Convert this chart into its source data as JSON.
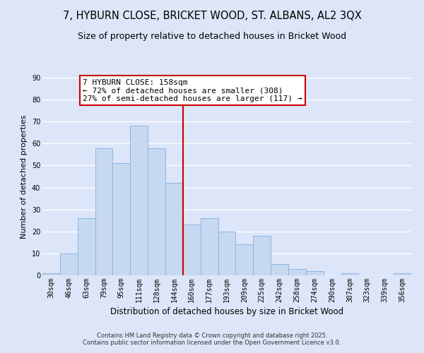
{
  "title": "7, HYBURN CLOSE, BRICKET WOOD, ST. ALBANS, AL2 3QX",
  "subtitle": "Size of property relative to detached houses in Bricket Wood",
  "xlabel": "Distribution of detached houses by size in Bricket Wood",
  "ylabel": "Number of detached properties",
  "bar_labels": [
    "30sqm",
    "46sqm",
    "63sqm",
    "79sqm",
    "95sqm",
    "111sqm",
    "128sqm",
    "144sqm",
    "160sqm",
    "177sqm",
    "193sqm",
    "209sqm",
    "225sqm",
    "242sqm",
    "258sqm",
    "274sqm",
    "290sqm",
    "307sqm",
    "323sqm",
    "339sqm",
    "356sqm"
  ],
  "bar_heights": [
    1,
    10,
    26,
    58,
    51,
    68,
    58,
    42,
    23,
    26,
    20,
    14,
    18,
    5,
    3,
    2,
    0,
    1,
    0,
    0,
    1
  ],
  "bar_color": "#c6d9f1",
  "bar_edge_color": "#8db4e2",
  "vline_color": "#cc0000",
  "annotation_box_text": "7 HYBURN CLOSE: 158sqm\n← 72% of detached houses are smaller (308)\n27% of semi-detached houses are larger (117) →",
  "annotation_box_facecolor": "#ffffff",
  "annotation_box_edgecolor": "#cc0000",
  "ylim": [
    0,
    90
  ],
  "yticks": [
    0,
    10,
    20,
    30,
    40,
    50,
    60,
    70,
    80,
    90
  ],
  "background_color": "#dce6f8",
  "grid_color": "#ffffff",
  "footnote": "Contains HM Land Registry data © Crown copyright and database right 2025.\nContains public sector information licensed under the Open Government Licence v3.0.",
  "title_fontsize": 10.5,
  "subtitle_fontsize": 9,
  "xlabel_fontsize": 8.5,
  "ylabel_fontsize": 8,
  "tick_fontsize": 7,
  "annotation_fontsize": 8,
  "footnote_fontsize": 6
}
